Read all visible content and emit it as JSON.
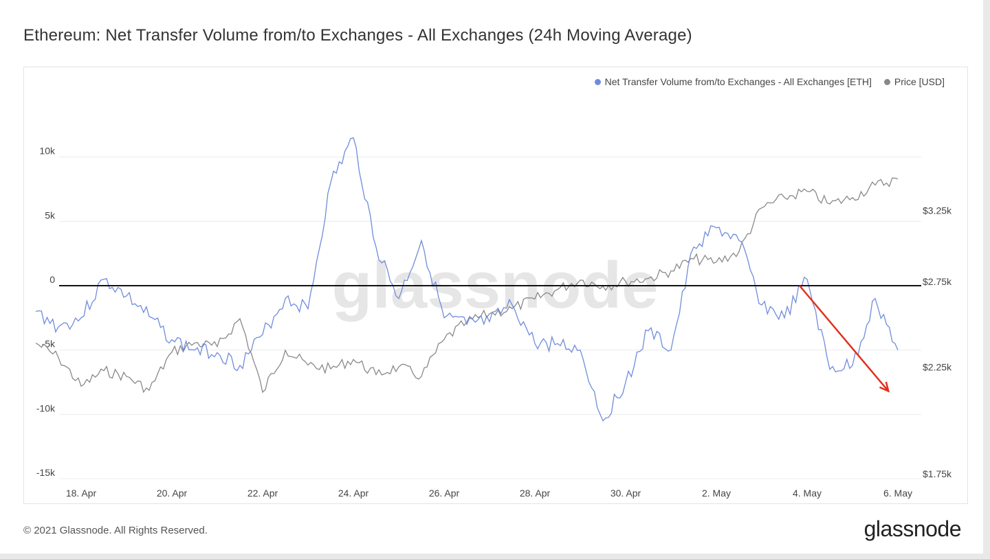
{
  "page": {
    "title": "Ethereum: Net Transfer Volume from/to Exchanges - All Exchanges (24h Moving Average)",
    "copyright": "© 2021 Glassnode. All Rights Reserved.",
    "brand": "glassnode",
    "watermark": "glassnode"
  },
  "colors": {
    "volume": "#6f8bdc",
    "price": "#888888",
    "zero_line": "#111111",
    "arrow": "#e0301e"
  },
  "chart_data": {
    "type": "line",
    "title": "Ethereum: Net Transfer Volume from/to Exchanges - All Exchanges (24h Moving Average)",
    "x_range": [
      "2021-04-17",
      "2021-05-06"
    ],
    "x_ticks": [
      "18. Apr",
      "20. Apr",
      "22. Apr",
      "24. Apr",
      "26. Apr",
      "28. Apr",
      "30. Apr",
      "2. May",
      "4. May",
      "6. May"
    ],
    "y_left": {
      "range": [
        -15000,
        15000
      ],
      "ticks": [
        -15000,
        -10000,
        -5000,
        0,
        5000,
        10000
      ],
      "tick_labels": [
        "-15k",
        "-10k",
        "-5k",
        "0",
        "5k",
        "10k"
      ]
    },
    "y_right": {
      "scale": "log",
      "ticks": [
        1750,
        2250,
        2750,
        3250
      ],
      "tick_labels": [
        "$1.75k",
        "$2.25k",
        "$2.75k",
        "$3.25k"
      ]
    },
    "legend_position": "top-right",
    "series": [
      {
        "name": "Net Transfer Volume from/to Exchanges - All Exchanges [ETH]",
        "axis": "left",
        "x": [
          "2021-04-17",
          "2021-04-17 12:00",
          "2021-04-18",
          "2021-04-18 12:00",
          "2021-04-19",
          "2021-04-19 12:00",
          "2021-04-20",
          "2021-04-20 12:00",
          "2021-04-21",
          "2021-04-21 12:00",
          "2021-04-22",
          "2021-04-22 12:00",
          "2021-04-23",
          "2021-04-23 12:00",
          "2021-04-24",
          "2021-04-24 12:00",
          "2021-04-25",
          "2021-04-25 12:00",
          "2021-04-26",
          "2021-04-26 12:00",
          "2021-04-27",
          "2021-04-27 12:00",
          "2021-04-28",
          "2021-04-28 12:00",
          "2021-04-29",
          "2021-04-29 12:00",
          "2021-04-30",
          "2021-04-30 12:00",
          "2021-05-01",
          "2021-05-01 12:00",
          "2021-05-02",
          "2021-05-02 12:00",
          "2021-05-03",
          "2021-05-03 12:00",
          "2021-05-04",
          "2021-05-04 12:00",
          "2021-05-05",
          "2021-05-05 12:00",
          "2021-05-06"
        ],
        "values": [
          -2000,
          -3200,
          -2500,
          500,
          -800,
          -2400,
          -4200,
          -5000,
          -5200,
          -6200,
          -3800,
          -1000,
          -1800,
          8000,
          11500,
          3000,
          -1000,
          3500,
          -2500,
          -3000,
          -2800,
          -1500,
          -4500,
          -4500,
          -5000,
          -10500,
          -7500,
          -3500,
          -5000,
          3000,
          4500,
          3500,
          -1500,
          -2500,
          500,
          -6500,
          -6200,
          -1000,
          -5000
        ]
      },
      {
        "name": "Price [USD]",
        "axis": "right",
        "x": [
          "2021-04-17",
          "2021-04-17 12:00",
          "2021-04-18",
          "2021-04-18 12:00",
          "2021-04-19",
          "2021-04-19 12:00",
          "2021-04-20",
          "2021-04-20 12:00",
          "2021-04-21",
          "2021-04-21 12:00",
          "2021-04-22",
          "2021-04-22 12:00",
          "2021-04-23",
          "2021-04-23 12:00",
          "2021-04-24",
          "2021-04-24 12:00",
          "2021-04-25",
          "2021-04-25 12:00",
          "2021-04-26",
          "2021-04-26 12:00",
          "2021-04-27",
          "2021-04-27 12:00",
          "2021-04-28",
          "2021-04-28 12:00",
          "2021-04-29",
          "2021-04-29 12:00",
          "2021-04-30",
          "2021-04-30 12:00",
          "2021-05-01",
          "2021-05-01 12:00",
          "2021-05-02",
          "2021-05-02 12:00",
          "2021-05-03",
          "2021-05-03 12:00",
          "2021-05-04",
          "2021-05-04 12:00",
          "2021-05-05",
          "2021-05-05 12:00",
          "2021-05-06"
        ],
        "values": [
          2380,
          2300,
          2150,
          2230,
          2200,
          2130,
          2330,
          2380,
          2360,
          2520,
          2120,
          2340,
          2260,
          2240,
          2290,
          2210,
          2250,
          2200,
          2400,
          2500,
          2550,
          2580,
          2640,
          2700,
          2760,
          2720,
          2750,
          2770,
          2820,
          2900,
          2880,
          2950,
          3270,
          3350,
          3400,
          3300,
          3350,
          3450,
          3500
        ]
      }
    ],
    "annotations": [
      {
        "type": "arrow",
        "color": "red",
        "from": {
          "x": "2021-05-03 20:00",
          "y": 0
        },
        "to": {
          "x": "2021-05-05 19:00",
          "y": -8200
        }
      }
    ]
  }
}
